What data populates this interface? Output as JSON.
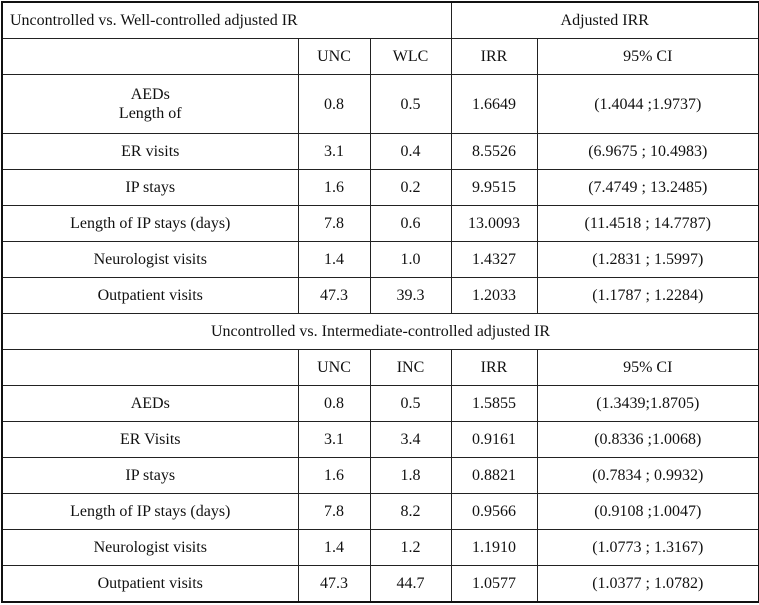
{
  "table": {
    "sections": [
      {
        "title": "Uncontrolled vs. Well-controlled adjusted IR",
        "side_title": "Adjusted IRR",
        "header": [
          "UNC",
          "WLC",
          "IRR",
          "95% CI"
        ],
        "rows": [
          [
            [
              "AEDs",
              "Length of"
            ],
            "0.8",
            "0.5",
            "1.6649",
            "(1.4044 ;1.9737)"
          ],
          [
            [
              "ER visits"
            ],
            "3.1",
            "0.4",
            "8.5526",
            "(6.9675 ; 10.4983)"
          ],
          [
            [
              "IP stays"
            ],
            "1.6",
            "0.2",
            "9.9515",
            "(7.4749 ; 13.2485)"
          ],
          [
            [
              "Length of IP stays (days)"
            ],
            "7.8",
            "0.6",
            "13.0093",
            "(11.4518 ; 14.7787)"
          ],
          [
            [
              "Neurologist visits"
            ],
            "1.4",
            "1.0",
            "1.4327",
            "(1.2831 ; 1.5997)"
          ],
          [
            [
              "Outpatient visits"
            ],
            "47.3",
            "39.3",
            "1.2033",
            "(1.1787 ; 1.2284)"
          ]
        ]
      },
      {
        "title": "Uncontrolled vs. Intermediate-controlled adjusted IR",
        "header": [
          "UNC",
          "INC",
          "IRR",
          "95% CI"
        ],
        "rows": [
          [
            [
              "AEDs"
            ],
            "0.8",
            "0.5",
            "1.5855",
            "(1.3439;1.8705)"
          ],
          [
            [
              "ER Visits"
            ],
            "3.1",
            "3.4",
            "0.9161",
            "(0.8336 ;1.0068)"
          ],
          [
            [
              "IP stays"
            ],
            "1.6",
            "1.8",
            "0.8821",
            "(0.7834 ; 0.9932)"
          ],
          [
            [
              "Length of IP stays (days)"
            ],
            "7.8",
            "8.2",
            "0.9566",
            "(0.9108 ;1.0047)"
          ],
          [
            [
              "Neurologist visits"
            ],
            "1.4",
            "1.2",
            "1.1910",
            "(1.0773 ; 1.3167)"
          ],
          [
            [
              "Outpatient visits"
            ],
            "47.3",
            "44.7",
            "1.0577",
            "(1.0377 ; 1.0782)"
          ]
        ]
      }
    ]
  }
}
